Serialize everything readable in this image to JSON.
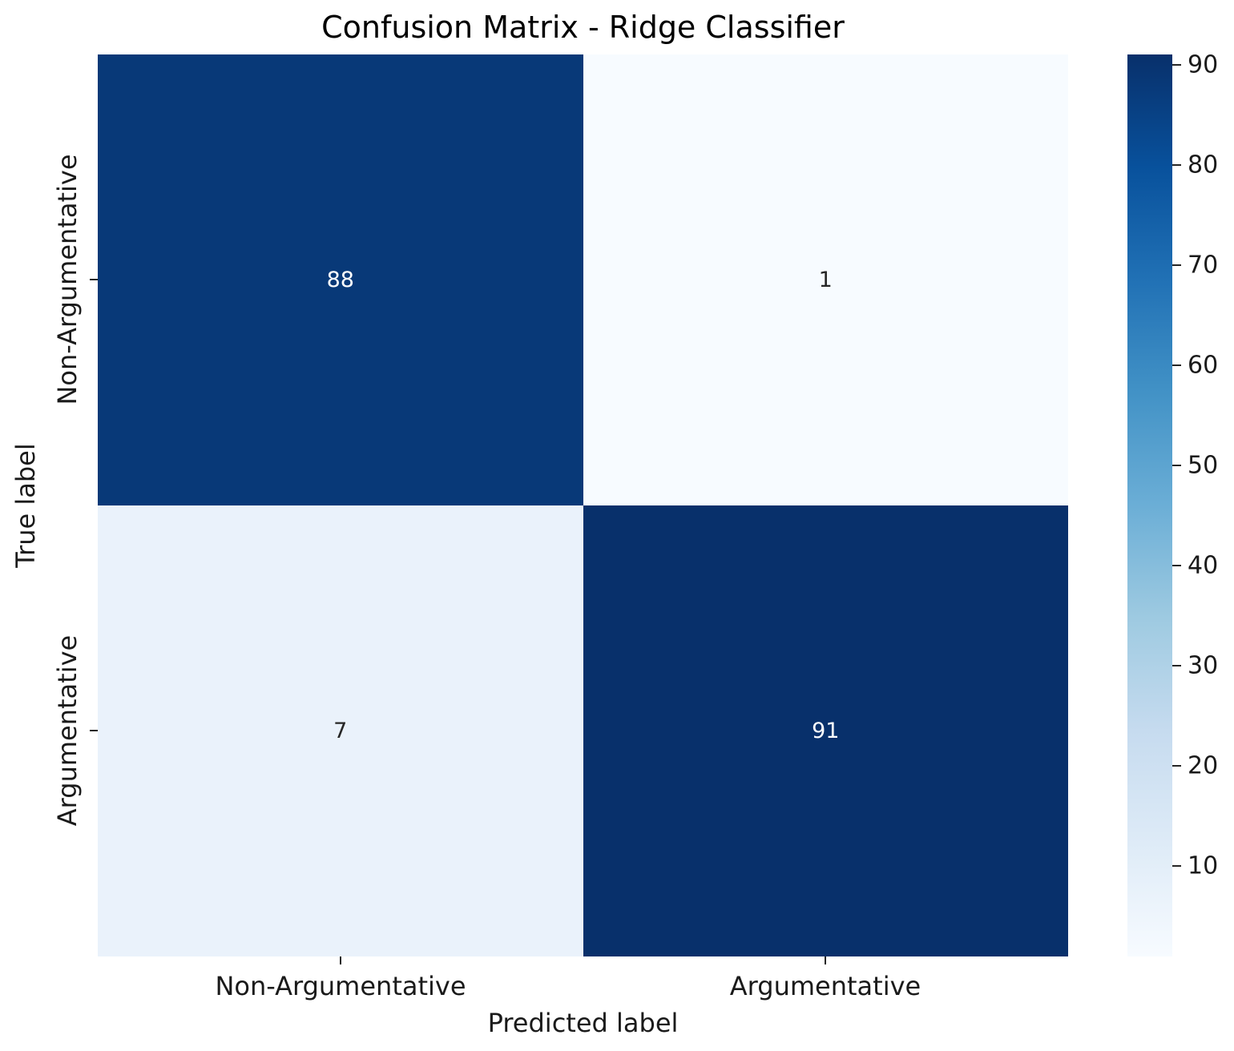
{
  "chart_data": {
    "type": "heatmap",
    "title": "Confusion Matrix - Ridge Classifier",
    "xlabel": "Predicted label",
    "ylabel": "True label",
    "x_categories": [
      "Non-Argumentative",
      "Argumentative"
    ],
    "y_categories": [
      "Non-Argumentative",
      "Argumentative"
    ],
    "values": [
      [
        88,
        1
      ],
      [
        7,
        91
      ]
    ],
    "vmin": 1,
    "vmax": 91,
    "colormap": "Blues",
    "grid": false,
    "legend_position": "right-colorbar",
    "colorbar_ticks": [
      10,
      20,
      30,
      40,
      50,
      60,
      70,
      80,
      90
    ],
    "colormap_stops": [
      "#f7fbff",
      "#deebf7",
      "#c6dbef",
      "#9ecae1",
      "#6baed6",
      "#4292c6",
      "#2171b5",
      "#08519c",
      "#08306b"
    ],
    "cells": [
      {
        "row": "Non-Argumentative",
        "col": "Non-Argumentative",
        "value": "88",
        "bg": "#083978",
        "fg": "#ffffff"
      },
      {
        "row": "Non-Argumentative",
        "col": "Argumentative",
        "value": "1",
        "bg": "#f7fbff",
        "fg": "#262626"
      },
      {
        "row": "Argumentative",
        "col": "Non-Argumentative",
        "value": "7",
        "bg": "#eaf2fb",
        "fg": "#262626"
      },
      {
        "row": "Argumentative",
        "col": "Argumentative",
        "value": "91",
        "bg": "#08306b",
        "fg": "#ffffff"
      }
    ]
  }
}
